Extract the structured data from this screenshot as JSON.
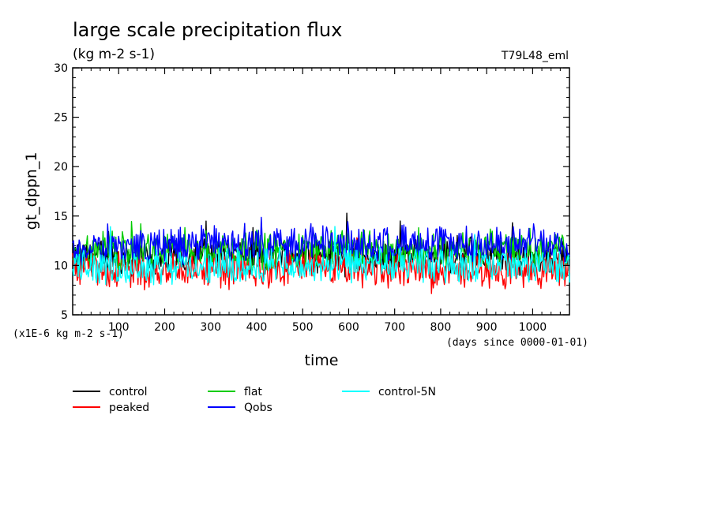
{
  "chart_data": {
    "type": "line",
    "title": "large scale precipitation flux",
    "subtitle": "(kg m-2 s-1)",
    "annotation_right": "T79L48_eml",
    "xlabel": "time",
    "ylabel": "gt_dppn_1",
    "x_unit_note": "(days since 0000-01-01)",
    "y_unit_note": "(x1E-6 kg m-2 s-1)",
    "xlim": [
      0,
      1080
    ],
    "ylim": [
      5,
      30
    ],
    "x_ticks": [
      100,
      200,
      300,
      400,
      500,
      600,
      700,
      800,
      900,
      1000
    ],
    "y_ticks": [
      5,
      10,
      15,
      20,
      25,
      30
    ],
    "x": [
      0,
      60,
      120,
      180,
      240,
      300,
      360,
      420,
      480,
      540,
      600,
      660,
      720,
      780,
      840,
      900,
      960,
      1020,
      1080
    ],
    "series": [
      {
        "name": "control",
        "color": "#000000",
        "values": [
          10.5,
          11.0,
          10.8,
          10.6,
          11.0,
          11.2,
          10.9,
          10.7,
          11.0,
          11.1,
          10.8,
          10.6,
          10.9,
          11.1,
          11.3,
          11.0,
          10.8,
          10.9,
          10.7
        ]
      },
      {
        "name": "peaked",
        "color": "#ff0000",
        "values": [
          10.0,
          9.5,
          9.6,
          9.4,
          9.7,
          9.5,
          9.6,
          9.4,
          9.8,
          9.5,
          9.4,
          9.5,
          9.3,
          9.6,
          9.5,
          9.4,
          9.6,
          9.5,
          9.3
        ]
      },
      {
        "name": "flat",
        "color": "#00cc00",
        "values": [
          11.0,
          11.5,
          11.3,
          11.6,
          11.8,
          11.6,
          11.7,
          11.5,
          11.6,
          11.7,
          11.8,
          11.5,
          11.6,
          11.7,
          11.6,
          11.8,
          11.9,
          11.7,
          11.4
        ]
      },
      {
        "name": "Qobs",
        "color": "#0000ff",
        "values": [
          11.5,
          11.8,
          12.0,
          11.9,
          12.1,
          12.3,
          12.0,
          12.2,
          12.1,
          12.3,
          12.0,
          12.2,
          12.4,
          12.1,
          12.2,
          12.0,
          12.1,
          12.2,
          12.0
        ]
      },
      {
        "name": "control-5N",
        "color": "#00ffff",
        "values": [
          10.2,
          10.0,
          9.8,
          10.1,
          10.0,
          9.7,
          9.9,
          10.1,
          9.8,
          9.9,
          10.2,
          9.9,
          10.0,
          9.8,
          10.1,
          10.0,
          9.9,
          10.1,
          10.0
        ]
      }
    ]
  }
}
